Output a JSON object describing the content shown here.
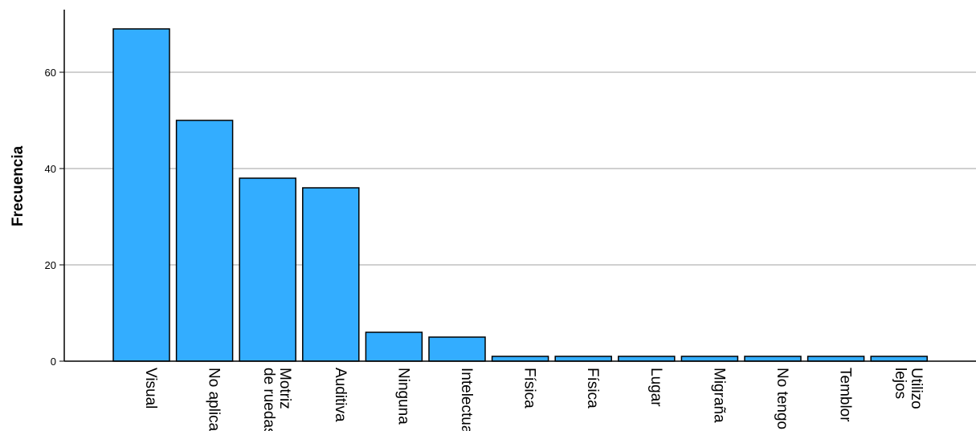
{
  "chart_data": {
    "type": "bar",
    "title": "",
    "xlabel": "",
    "ylabel": "Frecuencia",
    "ylim": [
      0,
      73
    ],
    "yticks": [
      0,
      20,
      40,
      60
    ],
    "grid": true,
    "bar_color": "#33adff",
    "bar_stroke": "#000000",
    "grid_color": "#b3b3b3",
    "categories": [
      [
        "Visual"
      ],
      [
        "No aplica"
      ],
      [
        "Motriz",
        "de ruedas"
      ],
      [
        "Auditiva"
      ],
      [
        "Ninguna"
      ],
      [
        "Intelectual"
      ],
      [
        "Física"
      ],
      [
        "Física"
      ],
      [
        "Lugar"
      ],
      [
        "Migraña"
      ],
      [
        "No tengo"
      ],
      [
        "Temblor"
      ],
      [
        "Utilizo",
        "lejos"
      ]
    ],
    "values": [
      69,
      50,
      38,
      36,
      6,
      5,
      1,
      1,
      1,
      1,
      1,
      1,
      1
    ]
  }
}
